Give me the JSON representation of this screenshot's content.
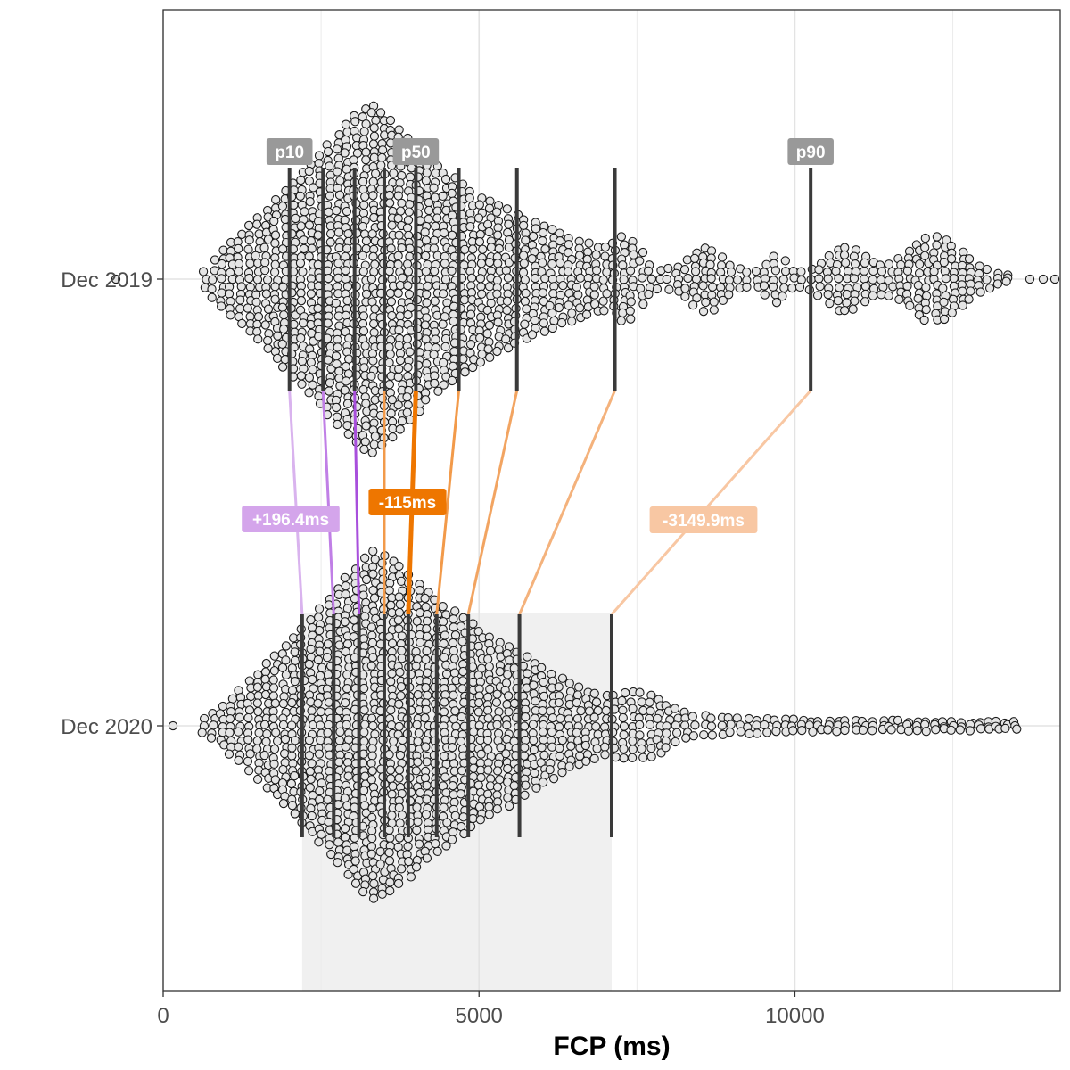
{
  "chart_data": {
    "type": "scatter",
    "subtype": "beeswarm",
    "xlabel": "FCP (ms)",
    "ylabel": "",
    "xlim": [
      0,
      14200
    ],
    "x_ticks": [
      0,
      5000,
      10000
    ],
    "x_tick_labels": [
      "0",
      "5000",
      "10000"
    ],
    "grid": true,
    "categories": [
      "Dec 2019",
      "Dec 2020"
    ],
    "series": [
      {
        "name": "Dec 2019",
        "percentiles": {
          "p10": 2000,
          "p20": 2530,
          "p30": 3030,
          "p40": 3500,
          "p50": 4000,
          "p60": 4680,
          "p70": 5600,
          "p80": 7150,
          "p90": 10250
        }
      },
      {
        "name": "Dec 2020",
        "percentiles": {
          "p10": 2200,
          "p20": 2700,
          "p30": 3100,
          "p40": 3500,
          "p50": 3880,
          "p60": 4330,
          "p70": 4830,
          "p80": 5640,
          "p90": 7100
        }
      }
    ],
    "percentile_labels": [
      "p10",
      "p50",
      "p90"
    ],
    "differences": [
      {
        "from": "p10",
        "label": "+196.4ms",
        "color": "#d4a5eb"
      },
      {
        "from": "p50",
        "label": "-115ms",
        "color": "#ee7600"
      },
      {
        "from": "p90",
        "label": "-3149.9ms",
        "color": "#f8c7a3"
      }
    ],
    "highlight_range": [
      2200,
      7100
    ],
    "colors": {
      "dot_fill": "#e5e5e5",
      "dot_stroke": "#1a1a1a",
      "percentile_line": "#3a3a3a",
      "label_bg": "#999999",
      "improve": "#ee7600",
      "regress": "#b766e0",
      "highlight": "#f0f0f0"
    }
  }
}
